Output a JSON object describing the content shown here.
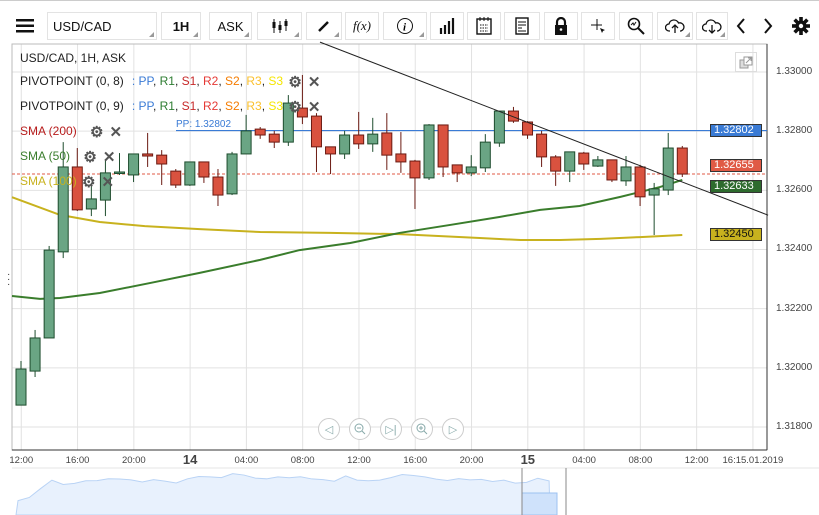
{
  "toolbar": {
    "symbol": "USD/CAD",
    "timeframe": "1H",
    "price_type": "ASK",
    "fx_label": "f(x)"
  },
  "chart": {
    "title": "USD/CAD, 1H, ASK",
    "indicators": [
      {
        "name": "PIVOTPOINT (0, 8)",
        "levels": [
          "PP",
          "R1",
          "S1",
          "R2",
          "S2",
          "R3",
          "S3"
        ]
      },
      {
        "name": "PIVOTPOINT (0, 9)",
        "levels": [
          "PP",
          "R1",
          "S1",
          "R2",
          "S2",
          "R3",
          "S3"
        ]
      },
      {
        "name": "SMA (200)"
      },
      {
        "name": "SMA (50)"
      },
      {
        "name": "SMA (100)"
      }
    ],
    "level_colors": [
      "#3a7bd5",
      "#2e7d32",
      "#c62828",
      "#e53935",
      "#f57c00",
      "#fbc02d",
      "#f5e600"
    ],
    "pp_label": "PP: 1.32802",
    "price_axis": [
      "1.33000",
      "1.32800",
      "1.32600",
      "1.32400",
      "1.32200",
      "1.32000",
      "1.31800"
    ],
    "price_ticks": [
      1.33,
      1.328,
      1.326,
      1.324,
      1.322,
      1.32,
      1.318
    ],
    "price_tags": {
      "pp": {
        "text": "1.32802",
        "value": 1.32802,
        "color": "#3a7bd5"
      },
      "last": {
        "text": "1.32655",
        "value": 1.32655,
        "color": "#e05a45"
      },
      "sma50": {
        "text": "1.32633",
        "value": 1.32633,
        "color": "#2e6b2e"
      },
      "sma100": {
        "text": "1.32450",
        "value": 1.3245,
        "color": "#c8b21e"
      }
    },
    "time_axis": [
      {
        "label": "12:00",
        "idx": 1
      },
      {
        "label": "16:00",
        "idx": 5
      },
      {
        "label": "20:00",
        "idx": 9
      },
      {
        "label": "14",
        "idx": 13,
        "big": true
      },
      {
        "label": "04:00",
        "idx": 17
      },
      {
        "label": "08:00",
        "idx": 21
      },
      {
        "label": "12:00",
        "idx": 25
      },
      {
        "label": "16:00",
        "idx": 29
      },
      {
        "label": "20:00",
        "idx": 33
      },
      {
        "label": "15",
        "idx": 37,
        "big": true
      },
      {
        "label": "04:00",
        "idx": 41
      },
      {
        "label": "08:00",
        "idx": 45
      },
      {
        "label": "12:00",
        "idx": 49
      },
      {
        "label": "16:15.01.2019",
        "idx": 53
      }
    ],
    "candles": [
      [
        1.31874,
        1.32023,
        1.31874,
        1.31996
      ],
      [
        1.31989,
        1.32128,
        1.31969,
        1.32101
      ],
      [
        1.32101,
        1.32412,
        1.32101,
        1.32398
      ],
      [
        1.32392,
        1.32763,
        1.32371,
        1.32679
      ],
      [
        1.32679,
        1.32743,
        1.3253,
        1.32534
      ],
      [
        1.32537,
        1.32625,
        1.32513,
        1.32571
      ],
      [
        1.32567,
        1.32703,
        1.32513,
        1.32659
      ],
      [
        1.32659,
        1.32726,
        1.32652,
        1.32662
      ],
      [
        1.32652,
        1.32723,
        1.32628,
        1.32723
      ],
      [
        1.32723,
        1.32794,
        1.32679,
        1.32716
      ],
      [
        1.32719,
        1.32736,
        1.32618,
        1.32689
      ],
      [
        1.32665,
        1.32672,
        1.32608,
        1.32618
      ],
      [
        1.32618,
        1.32696,
        1.32615,
        1.32696
      ],
      [
        1.32696,
        1.32696,
        1.32625,
        1.32645
      ],
      [
        1.32645,
        1.32672,
        1.32547,
        1.32584
      ],
      [
        1.32588,
        1.3273,
        1.32584,
        1.32723
      ],
      [
        1.32723,
        1.32855,
        1.32723,
        1.32801
      ],
      [
        1.32807,
        1.32814,
        1.32774,
        1.32787
      ],
      [
        1.3279,
        1.32801,
        1.32743,
        1.32763
      ],
      [
        1.32763,
        1.32922,
        1.3275,
        1.32895
      ],
      [
        1.32878,
        1.3299,
        1.32824,
        1.32848
      ],
      [
        1.32851,
        1.32861,
        1.32662,
        1.32747
      ],
      [
        1.32747,
        1.32747,
        1.32655,
        1.32723
      ],
      [
        1.32723,
        1.32801,
        1.32706,
        1.32787
      ],
      [
        1.32787,
        1.32865,
        1.3274,
        1.32757
      ],
      [
        1.32757,
        1.32845,
        1.3273,
        1.3279
      ],
      [
        1.32794,
        1.32861,
        1.32669,
        1.32719
      ],
      [
        1.32723,
        1.32797,
        1.32659,
        1.32696
      ],
      [
        1.32699,
        1.32703,
        1.32537,
        1.32642
      ],
      [
        1.32642,
        1.32824,
        1.32635,
        1.32821
      ],
      [
        1.32821,
        1.32821,
        1.32645,
        1.32679
      ],
      [
        1.32686,
        1.32686,
        1.32628,
        1.32659
      ],
      [
        1.32659,
        1.32719,
        1.32648,
        1.32679
      ],
      [
        1.32676,
        1.3279,
        1.32662,
        1.32763
      ],
      [
        1.3276,
        1.32868,
        1.32747,
        1.32868
      ],
      [
        1.32868,
        1.32882,
        1.32828,
        1.32834
      ],
      [
        1.32831,
        1.32834,
        1.32774,
        1.32787
      ],
      [
        1.3279,
        1.32801,
        1.32679,
        1.32713
      ],
      [
        1.32713,
        1.32719,
        1.32615,
        1.32665
      ],
      [
        1.32665,
        1.3273,
        1.32628,
        1.3273
      ],
      [
        1.32726,
        1.3273,
        1.32669,
        1.32689
      ],
      [
        1.32682,
        1.32716,
        1.32679,
        1.32703
      ],
      [
        1.32703,
        1.32703,
        1.32628,
        1.32635
      ],
      [
        1.32632,
        1.32716,
        1.32615,
        1.32679
      ],
      [
        1.32679,
        1.32686,
        1.32547,
        1.32578
      ],
      [
        1.32584,
        1.32625,
        1.32449,
        1.32605
      ],
      [
        1.32601,
        1.32794,
        1.32584,
        1.32743
      ],
      [
        1.32743,
        1.3275,
        1.32645,
        1.32655
      ]
    ],
    "sma50": [
      [
        -0.64,
        1.32243
      ],
      [
        1.35,
        1.32233
      ],
      [
        2.77,
        1.32236
      ],
      [
        5.6,
        1.32253
      ],
      [
        9.2,
        1.32287
      ],
      [
        12.7,
        1.32321
      ],
      [
        17,
        1.32365
      ],
      [
        19.8,
        1.32398
      ],
      [
        23.4,
        1.32422
      ],
      [
        26.9,
        1.32456
      ],
      [
        30.5,
        1.32483
      ],
      [
        34,
        1.3251
      ],
      [
        36.9,
        1.32534
      ],
      [
        39.7,
        1.32547
      ],
      [
        42.6,
        1.32578
      ],
      [
        45.4,
        1.32611
      ],
      [
        47,
        1.32635
      ]
    ],
    "sma100": [
      [
        -0.64,
        1.32577
      ],
      [
        2.77,
        1.32517
      ],
      [
        5.6,
        1.32493
      ],
      [
        8.8,
        1.32479
      ],
      [
        12.7,
        1.32469
      ],
      [
        17,
        1.32459
      ],
      [
        22,
        1.32456
      ],
      [
        26.9,
        1.32452
      ],
      [
        32.6,
        1.32439
      ],
      [
        35.5,
        1.32432
      ],
      [
        38.3,
        1.32432
      ],
      [
        41.2,
        1.32436
      ],
      [
        44,
        1.32442
      ],
      [
        47,
        1.32449
      ]
    ],
    "trendline": [
      [
        21.25,
        1.33101
      ],
      [
        53.1,
        1.32516
      ]
    ],
    "colors": {
      "up": "#6aa584",
      "down": "#d9523f",
      "up_border": "#1e4d2e",
      "down_border": "#6b1a12",
      "sma50": "#3a7d2c",
      "sma100": "#c8b21e",
      "sma200": "#b71c1c",
      "pp": "#3a7bd5"
    }
  }
}
